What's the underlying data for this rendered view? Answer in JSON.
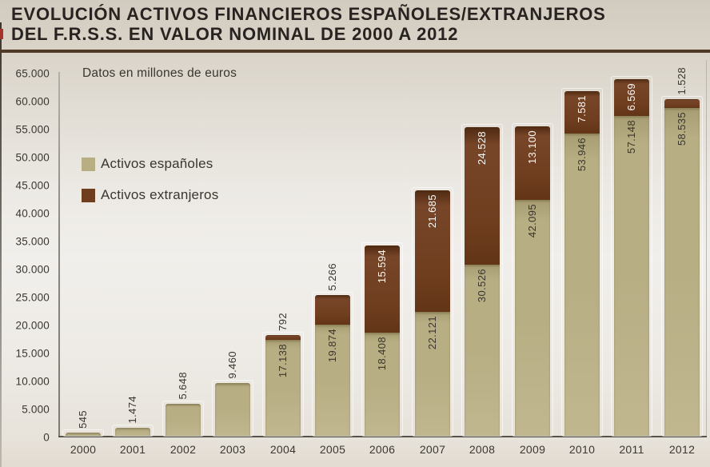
{
  "title": {
    "line1": "EVOLUCIÓN ACTIVOS FINANCIEROS ESPAÑOLES/EXTRANJEROS",
    "line2": "DEL F.R.S.S. EN VALOR NOMINAL DE 2000 A 2012"
  },
  "chart_data": {
    "type": "bar",
    "stacked": true,
    "title": "EVOLUCIÓN ACTIVOS FINANCIEROS ESPAÑOLES/EXTRANJEROS DEL F.R.S.S. EN VALOR NOMINAL DE 2000 A 2012",
    "subtitle": "Datos en millones de euros",
    "unit": "millones de euros",
    "categories": [
      "2000",
      "2001",
      "2002",
      "2003",
      "2004",
      "2005",
      "2006",
      "2007",
      "2008",
      "2009",
      "2010",
      "2011",
      "2012"
    ],
    "series": [
      {
        "name": "Activos españoles",
        "color": "#b8ae84",
        "values": [
          545,
          1474,
          5648,
          9460,
          17138,
          19874,
          18408,
          22121,
          30526,
          42095,
          53946,
          57148,
          58535
        ],
        "labels": [
          "545",
          "1.474",
          "5.648",
          "9.460",
          "17.138",
          "19.874",
          "18.408",
          "22.121",
          "30.526",
          "42.095",
          "53.946",
          "57.148",
          "58.535"
        ]
      },
      {
        "name": "Activos extranjeros",
        "color": "#6f3e1f",
        "values": [
          0,
          0,
          0,
          0,
          792,
          5266,
          15594,
          21685,
          24528,
          13100,
          7581,
          6569,
          1528
        ],
        "labels": [
          "",
          "",
          "",
          "",
          "792",
          "5.266",
          "15.594",
          "21.685",
          "24.528",
          "13.100",
          "7.581",
          "6.569",
          "1.528"
        ]
      }
    ],
    "ylim": [
      0,
      65000
    ],
    "ytick_step": 5000,
    "ytick_labels": [
      "0",
      "5.000",
      "10.000",
      "15.000",
      "20.000",
      "25.000",
      "30.000",
      "35.000",
      "40.000",
      "45.000",
      "50.000",
      "55.000",
      "60.000",
      "65.000"
    ],
    "grid": false,
    "legend_position": "inside-top-left",
    "bar_label_rotation": "vertical"
  },
  "colors": {
    "series_es": "#b8ae84",
    "series_ext": "#6f3e1f",
    "title_text": "#282320",
    "divider": "#4f3b28",
    "axis_line": "#8b877f",
    "baseline": "#57534b",
    "label_dark": "#3a352e",
    "label_light": "#fdfbf7",
    "background_top": "#d2cbbf",
    "background_mid": "#f1efeb",
    "edge_accent_red": "#a8332b"
  }
}
